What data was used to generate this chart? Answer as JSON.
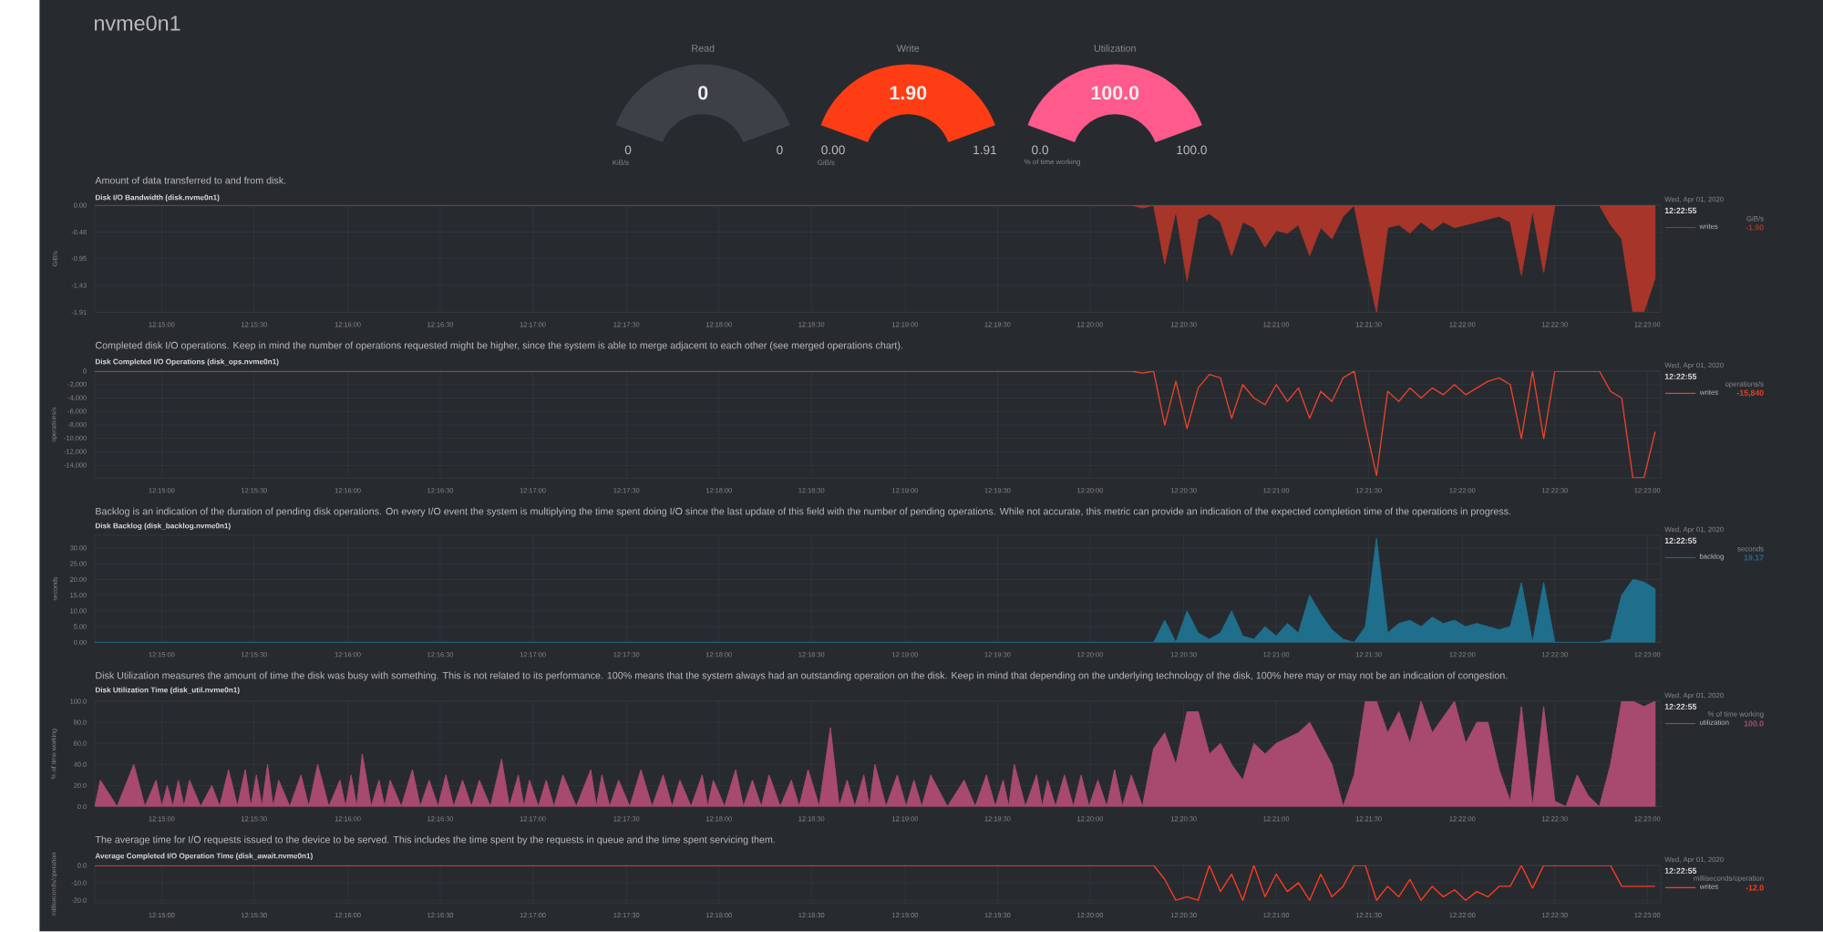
{
  "chart_data": [
    {
      "type": "other",
      "title": "nvme0n1"
    },
    {
      "type": "other",
      "title": "Read",
      "colors": [
        "#3d4046"
      ],
      "annotations": [
        "0",
        "0",
        "0",
        "KiB/s"
      ]
    },
    {
      "type": "other",
      "title": "Write",
      "colors": [
        "#ff3d14"
      ],
      "annotations": [
        "1.90",
        "0.00",
        "1.91",
        "GiB/s"
      ]
    },
    {
      "type": "other",
      "title": "Utilization",
      "colors": [
        "#ff5a8c"
      ],
      "annotations": [
        "100.0",
        "0.0",
        "100.0",
        "% of time working"
      ]
    },
    {
      "type": "area",
      "subtitle": "Amount of data transferred to and from disk.",
      "title": "Disk I/O Bandwidth (disk.nvme0n1)",
      "ylabel": "GiB/s",
      "grid": true,
      "legend": "right",
      "annotations": [
        "Wed, Apr 01, 2020",
        "12:22:55",
        "GiB/s",
        "-1.90"
      ],
      "xlim": [
        12.244,
        12.3845
      ],
      "ylim": [
        -1.91,
        0
      ],
      "xticks": [
        {
          "value": 12.25,
          "label": "12:15:00"
        },
        {
          "value": 12.2583,
          "label": "12:15:30"
        },
        {
          "value": 12.2667,
          "label": "12:16:00"
        },
        {
          "value": 12.275,
          "label": "12:16:30"
        },
        {
          "value": 12.2833,
          "label": "12:17:00"
        },
        {
          "value": 12.2917,
          "label": "12:17:30"
        },
        {
          "value": 12.3,
          "label": "12:18:00"
        },
        {
          "value": 12.3083,
          "label": "12:18:30"
        },
        {
          "value": 12.3167,
          "label": "12:19:00"
        },
        {
          "value": 12.325,
          "label": "12:19:30"
        },
        {
          "value": 12.3333,
          "label": "12:20:00"
        },
        {
          "value": 12.3417,
          "label": "12:20:30"
        },
        {
          "value": 12.35,
          "label": "12:21:00"
        },
        {
          "value": 12.3583,
          "label": "12:21:30"
        },
        {
          "value": 12.3667,
          "label": "12:22:00"
        },
        {
          "value": 12.375,
          "label": "12:22:30"
        },
        {
          "value": 12.3833,
          "label": "12:23:00"
        }
      ],
      "yticks": [
        {
          "value": 0,
          "label": "0.00"
        },
        -0.48,
        -0.95,
        -1.43,
        -1.91
      ],
      "x": [
        12.244,
        12.337,
        12.338,
        12.339,
        12.34,
        12.341,
        12.342,
        12.343,
        12.344,
        12.345,
        12.346,
        12.347,
        12.348,
        12.349,
        12.35,
        12.351,
        12.352,
        12.353,
        12.354,
        12.355,
        12.356,
        12.357,
        12.358,
        12.359,
        12.36,
        12.361,
        12.362,
        12.363,
        12.364,
        12.365,
        12.366,
        12.367,
        12.368,
        12.369,
        12.37,
        12.371,
        12.372,
        12.373,
        12.374,
        12.375,
        12.376,
        12.377,
        12.378,
        12.379,
        12.38,
        12.381,
        12.382,
        12.383,
        12.384
      ],
      "series": [
        {
          "name": "writes",
          "color": "#a8352a",
          "values": [
            0,
            0,
            -0.05,
            0,
            -1.05,
            -0.1,
            -1.35,
            -0.25,
            -0.15,
            -0.3,
            -0.9,
            -0.3,
            -0.4,
            -0.75,
            -0.45,
            -0.5,
            -0.35,
            -0.9,
            -0.4,
            -0.6,
            -0.2,
            0,
            -1.0,
            -1.91,
            -0.4,
            -0.35,
            -0.5,
            -0.3,
            -0.45,
            -0.3,
            -0.4,
            -0.35,
            -0.3,
            -0.25,
            -0.2,
            -0.3,
            -1.25,
            -0.1,
            -1.2,
            0,
            0,
            0,
            0,
            0,
            -0.35,
            -0.6,
            -1.9,
            -1.9,
            -1.3
          ]
        }
      ]
    },
    {
      "type": "line",
      "subtitle": "Completed disk I/O operations. Keep in mind the number of operations requested might be higher, since the system is able to merge adjacent to each other (see merged operations chart).",
      "title": "Disk Completed I/O Operations (disk_ops.nvme0n1)",
      "ylabel": "operations/s",
      "grid": true,
      "legend": "right",
      "annotations": [
        "Wed, Apr 01, 2020",
        "12:22:55",
        "operations/s",
        "-15,840"
      ],
      "xlim": [
        12.244,
        12.3845
      ],
      "ylim": [
        -15900,
        0
      ],
      "xticks": [
        {
          "value": 12.25,
          "label": "12:15:00"
        },
        {
          "value": 12.2583,
          "label": "12:15:30"
        },
        {
          "value": 12.2667,
          "label": "12:16:00"
        },
        {
          "value": 12.275,
          "label": "12:16:30"
        },
        {
          "value": 12.2833,
          "label": "12:17:00"
        },
        {
          "value": 12.2917,
          "label": "12:17:30"
        },
        {
          "value": 12.3,
          "label": "12:18:00"
        },
        {
          "value": 12.3083,
          "label": "12:18:30"
        },
        {
          "value": 12.3167,
          "label": "12:19:00"
        },
        {
          "value": 12.325,
          "label": "12:19:30"
        },
        {
          "value": 12.3333,
          "label": "12:20:00"
        },
        {
          "value": 12.3417,
          "label": "12:20:30"
        },
        {
          "value": 12.35,
          "label": "12:21:00"
        },
        {
          "value": 12.3583,
          "label": "12:21:30"
        },
        {
          "value": 12.3667,
          "label": "12:22:00"
        },
        {
          "value": 12.375,
          "label": "12:22:30"
        },
        {
          "value": 12.3833,
          "label": "12:23:00"
        }
      ],
      "yticks": [
        0,
        {
          "value": -2000,
          "label": "-2,000"
        },
        {
          "value": -4000,
          "label": "-4,000"
        },
        {
          "value": -6000,
          "label": "-6,000"
        },
        {
          "value": -8000,
          "label": "-8,000"
        },
        {
          "value": -10000,
          "label": "-10,000"
        },
        {
          "value": -12000,
          "label": "-12,000"
        },
        {
          "value": -14000,
          "label": "-14,000"
        }
      ],
      "x": [
        12.244,
        12.337,
        12.338,
        12.339,
        12.34,
        12.341,
        12.342,
        12.343,
        12.344,
        12.345,
        12.346,
        12.347,
        12.348,
        12.349,
        12.35,
        12.351,
        12.352,
        12.353,
        12.354,
        12.355,
        12.356,
        12.357,
        12.358,
        12.359,
        12.36,
        12.361,
        12.362,
        12.363,
        12.364,
        12.365,
        12.366,
        12.367,
        12.368,
        12.369,
        12.37,
        12.371,
        12.372,
        12.373,
        12.374,
        12.375,
        12.376,
        12.377,
        12.378,
        12.379,
        12.38,
        12.381,
        12.382,
        12.383,
        12.384
      ],
      "series": [
        {
          "name": "writes",
          "color": "#e8422a",
          "values": [
            0,
            0,
            -300,
            0,
            -8000,
            -1500,
            -8500,
            -2500,
            -500,
            -1000,
            -7000,
            -2000,
            -4000,
            -5000,
            -2000,
            -4500,
            -2500,
            -7000,
            -3000,
            -4500,
            -1000,
            0,
            -8000,
            -15500,
            -3000,
            -4500,
            -2500,
            -4000,
            -2500,
            -3500,
            -2000,
            -3500,
            -2500,
            -1500,
            -1000,
            -2000,
            -10000,
            0,
            -10000,
            0,
            0,
            0,
            0,
            0,
            -3000,
            -4000,
            -15840,
            -15840,
            -9000
          ]
        }
      ]
    },
    {
      "type": "area",
      "subtitle": "Backlog is an indication of the duration of pending disk operations. On every I/O event the system is multiplying the time spent doing I/O since the last update of this field with the number of pending operations. While not accurate, this metric can provide an indication of the expected completion time of the operations in progress.",
      "title": "Disk Backlog (disk_backlog.nvme0n1)",
      "ylabel": "seconds",
      "grid": true,
      "legend": "right",
      "annotations": [
        "Wed, Apr 01, 2020",
        "12:22:55",
        "seconds",
        "19.17"
      ],
      "xlim": [
        12.244,
        12.3845
      ],
      "ylim": [
        0,
        34
      ],
      "xticks": [
        {
          "value": 12.25,
          "label": "12:15:00"
        },
        {
          "value": 12.2583,
          "label": "12:15:30"
        },
        {
          "value": 12.2667,
          "label": "12:16:00"
        },
        {
          "value": 12.275,
          "label": "12:16:30"
        },
        {
          "value": 12.2833,
          "label": "12:17:00"
        },
        {
          "value": 12.2917,
          "label": "12:17:30"
        },
        {
          "value": 12.3,
          "label": "12:18:00"
        },
        {
          "value": 12.3083,
          "label": "12:18:30"
        },
        {
          "value": 12.3167,
          "label": "12:19:00"
        },
        {
          "value": 12.325,
          "label": "12:19:30"
        },
        {
          "value": 12.3333,
          "label": "12:20:00"
        },
        {
          "value": 12.3417,
          "label": "12:20:30"
        },
        {
          "value": 12.35,
          "label": "12:21:00"
        },
        {
          "value": 12.3583,
          "label": "12:21:30"
        },
        {
          "value": 12.3667,
          "label": "12:22:00"
        },
        {
          "value": 12.375,
          "label": "12:22:30"
        },
        {
          "value": 12.3833,
          "label": "12:23:00"
        }
      ],
      "yticks": [
        {
          "value": 0,
          "label": "0.00"
        },
        {
          "value": 5,
          "label": "5.00"
        },
        {
          "value": 10,
          "label": "10.00"
        },
        {
          "value": 15,
          "label": "15.00"
        },
        {
          "value": 20,
          "label": "20.00"
        },
        {
          "value": 25,
          "label": "25.00"
        },
        {
          "value": 30,
          "label": "30.00"
        }
      ],
      "x": [
        12.244,
        12.337,
        12.338,
        12.339,
        12.34,
        12.341,
        12.342,
        12.343,
        12.344,
        12.345,
        12.346,
        12.347,
        12.348,
        12.349,
        12.35,
        12.351,
        12.352,
        12.353,
        12.354,
        12.355,
        12.356,
        12.357,
        12.358,
        12.359,
        12.36,
        12.361,
        12.362,
        12.363,
        12.364,
        12.365,
        12.366,
        12.367,
        12.368,
        12.369,
        12.37,
        12.371,
        12.372,
        12.373,
        12.374,
        12.375,
        12.376,
        12.377,
        12.378,
        12.379,
        12.38,
        12.381,
        12.382,
        12.383,
        12.384
      ],
      "series": [
        {
          "name": "backlog",
          "color": "#1f6f8c",
          "values": [
            0,
            0,
            0,
            0,
            7,
            0,
            10,
            3,
            1,
            3,
            10,
            2,
            1,
            5,
            2,
            6,
            3,
            15,
            9,
            4,
            1,
            0,
            5,
            33,
            3,
            6,
            7,
            5,
            8,
            6,
            7,
            5,
            6,
            5,
            4,
            5,
            19,
            0,
            19,
            0,
            0,
            0,
            0,
            0,
            1,
            15,
            20,
            19.17,
            17
          ]
        }
      ]
    },
    {
      "type": "area",
      "subtitle": "Disk Utilization measures the amount of time the disk was busy with something. This is not related to its performance. 100% means that the system always had an outstanding operation on the disk. Keep in mind that depending on the underlying technology of the disk, 100% here may or may not be an indication of congestion.",
      "title": "Disk Utilization Time (disk_util.nvme0n1)",
      "ylabel": "% of time working",
      "grid": true,
      "legend": "right",
      "annotations": [
        "Wed, Apr 01, 2020",
        "12:22:55",
        "% of time working",
        "100.0"
      ],
      "xlim": [
        12.244,
        12.3845
      ],
      "ylim": [
        0,
        100
      ],
      "xticks": [
        {
          "value": 12.25,
          "label": "12:15:00"
        },
        {
          "value": 12.2583,
          "label": "12:15:30"
        },
        {
          "value": 12.2667,
          "label": "12:16:00"
        },
        {
          "value": 12.275,
          "label": "12:16:30"
        },
        {
          "value": 12.2833,
          "label": "12:17:00"
        },
        {
          "value": 12.2917,
          "label": "12:17:30"
        },
        {
          "value": 12.3,
          "label": "12:18:00"
        },
        {
          "value": 12.3083,
          "label": "12:18:30"
        },
        {
          "value": 12.3167,
          "label": "12:19:00"
        },
        {
          "value": 12.325,
          "label": "12:19:30"
        },
        {
          "value": 12.3333,
          "label": "12:20:00"
        },
        {
          "value": 12.3417,
          "label": "12:20:30"
        },
        {
          "value": 12.35,
          "label": "12:21:00"
        },
        {
          "value": 12.3583,
          "label": "12:21:30"
        },
        {
          "value": 12.3667,
          "label": "12:22:00"
        },
        {
          "value": 12.375,
          "label": "12:22:30"
        },
        {
          "value": 12.3833,
          "label": "12:23:00"
        }
      ],
      "yticks": [
        {
          "value": 0,
          "label": "0.0"
        },
        {
          "value": 20,
          "label": "20.0"
        },
        {
          "value": 40,
          "label": "40.0"
        },
        {
          "value": 60,
          "label": "60.0"
        },
        {
          "value": 80,
          "label": "80.0"
        },
        {
          "value": 100,
          "label": "100.0"
        }
      ],
      "x": [
        12.244,
        12.2445,
        12.246,
        12.2475,
        12.2485,
        12.2495,
        12.25,
        12.2505,
        12.251,
        12.2515,
        12.252,
        12.2525,
        12.2535,
        12.2545,
        12.2552,
        12.256,
        12.2568,
        12.2575,
        12.258,
        12.2585,
        12.259,
        12.2595,
        12.26,
        12.2605,
        12.2615,
        12.2625,
        12.2632,
        12.264,
        12.265,
        12.266,
        12.2665,
        12.267,
        12.2675,
        12.268,
        12.2688,
        12.2695,
        12.27,
        12.2705,
        12.2715,
        12.2725,
        12.2732,
        12.274,
        12.2748,
        12.2755,
        12.2762,
        12.277,
        12.2778,
        12.2785,
        12.2795,
        12.2805,
        12.2812,
        12.282,
        12.2825,
        12.283,
        12.2838,
        12.2845,
        12.2852,
        12.286,
        12.2872,
        12.2885,
        12.289,
        12.2895,
        12.2902,
        12.291,
        12.292,
        12.293,
        12.294,
        12.295,
        12.2958,
        12.2965,
        12.2975,
        12.2985,
        12.299,
        12.2995,
        12.3005,
        12.3015,
        12.3022,
        12.303,
        12.3038,
        12.3045,
        12.3055,
        12.3065,
        12.3072,
        12.308,
        12.309,
        12.31,
        12.3108,
        12.3115,
        12.3122,
        12.313,
        12.3135,
        12.314,
        12.315,
        12.316,
        12.3168,
        12.3175,
        12.3182,
        12.319,
        12.3205,
        12.322,
        12.323,
        12.324,
        12.3248,
        12.3255,
        12.326,
        12.3265,
        12.3275,
        12.3285,
        12.329,
        12.3295,
        12.3302,
        12.331,
        12.3318,
        12.3325,
        12.3332,
        12.334,
        12.3348,
        12.3355,
        12.3362,
        12.337,
        12.338,
        12.339,
        12.34,
        12.341,
        12.342,
        12.343,
        12.344,
        12.345,
        12.346,
        12.347,
        12.348,
        12.349,
        12.35,
        12.351,
        12.352,
        12.353,
        12.354,
        12.355,
        12.356,
        12.357,
        12.358,
        12.359,
        12.36,
        12.361,
        12.362,
        12.363,
        12.364,
        12.365,
        12.366,
        12.367,
        12.368,
        12.369,
        12.37,
        12.371,
        12.372,
        12.373,
        12.374,
        12.375,
        12.376,
        12.377,
        12.378,
        12.379,
        12.38,
        12.381,
        12.382,
        12.383,
        12.384
      ],
      "series": [
        {
          "name": "utilization",
          "color": "#a84a70",
          "values": [
            0,
            25,
            0,
            40,
            0,
            25,
            0,
            20,
            0,
            25,
            0,
            25,
            0,
            20,
            0,
            35,
            0,
            35,
            0,
            30,
            0,
            40,
            0,
            25,
            0,
            30,
            0,
            40,
            0,
            25,
            0,
            30,
            0,
            50,
            0,
            25,
            0,
            25,
            0,
            35,
            0,
            25,
            0,
            30,
            0,
            25,
            0,
            25,
            0,
            45,
            0,
            30,
            0,
            25,
            0,
            25,
            0,
            30,
            0,
            35,
            0,
            30,
            0,
            25,
            0,
            35,
            0,
            30,
            0,
            25,
            0,
            30,
            0,
            25,
            0,
            35,
            0,
            25,
            0,
            30,
            0,
            25,
            0,
            35,
            0,
            75,
            0,
            25,
            0,
            30,
            0,
            40,
            0,
            30,
            0,
            25,
            0,
            30,
            0,
            25,
            0,
            30,
            0,
            25,
            0,
            40,
            0,
            30,
            0,
            25,
            0,
            30,
            0,
            30,
            0,
            25,
            0,
            35,
            0,
            30,
            0,
            55,
            70,
            40,
            90,
            90,
            50,
            60,
            40,
            25,
            60,
            50,
            60,
            65,
            70,
            80,
            60,
            40,
            0,
            30,
            100,
            100,
            70,
            90,
            60,
            100,
            70,
            85,
            100,
            60,
            80,
            80,
            35,
            5,
            95,
            0,
            95,
            5,
            0,
            30,
            10,
            0,
            40,
            100,
            100,
            95,
            100
          ]
        }
      ]
    },
    {
      "type": "line",
      "subtitle": "The average time for I/O requests issued to the device to be served. This includes the time spent by the requests in queue and the time spent servicing them.",
      "title": "Average Completed I/O Operation Time (disk_await.nvme0n1)",
      "ylabel": "milliseconds/operation",
      "grid": true,
      "legend": "right",
      "annotations": [
        "Wed, Apr 01, 2020",
        "12:22:55",
        "milliseconds/operation",
        "-12.0"
      ],
      "xlim": [
        12.244,
        12.3845
      ],
      "ylim": [
        -21.5,
        0
      ],
      "xticks": [
        {
          "value": 12.25,
          "label": "12:15:00"
        },
        {
          "value": 12.2583,
          "label": "12:15:30"
        },
        {
          "value": 12.2667,
          "label": "12:16:00"
        },
        {
          "value": 12.275,
          "label": "12:16:30"
        },
        {
          "value": 12.2833,
          "label": "12:17:00"
        },
        {
          "value": 12.2917,
          "label": "12:17:30"
        },
        {
          "value": 12.3,
          "label": "12:18:00"
        },
        {
          "value": 12.3083,
          "label": "12:18:30"
        },
        {
          "value": 12.3167,
          "label": "12:19:00"
        },
        {
          "value": 12.325,
          "label": "12:19:30"
        },
        {
          "value": 12.3333,
          "label": "12:20:00"
        },
        {
          "value": 12.3417,
          "label": "12:20:30"
        },
        {
          "value": 12.35,
          "label": "12:21:00"
        },
        {
          "value": 12.3583,
          "label": "12:21:30"
        },
        {
          "value": 12.3667,
          "label": "12:22:00"
        },
        {
          "value": 12.375,
          "label": "12:22:30"
        },
        {
          "value": 12.3833,
          "label": "12:23:00"
        }
      ],
      "yticks": [
        {
          "value": 0,
          "label": "0.0"
        },
        {
          "value": -10,
          "label": "-10.0"
        },
        {
          "value": -20,
          "label": "-20.0"
        }
      ],
      "x": [
        12.244,
        12.337,
        12.338,
        12.339,
        12.34,
        12.341,
        12.342,
        12.343,
        12.344,
        12.345,
        12.346,
        12.347,
        12.348,
        12.349,
        12.35,
        12.351,
        12.352,
        12.353,
        12.354,
        12.355,
        12.356,
        12.357,
        12.358,
        12.359,
        12.36,
        12.361,
        12.362,
        12.363,
        12.364,
        12.365,
        12.366,
        12.367,
        12.368,
        12.369,
        12.37,
        12.371,
        12.372,
        12.373,
        12.374,
        12.375,
        12.376,
        12.377,
        12.378,
        12.379,
        12.38,
        12.381,
        12.382,
        12.383,
        12.384
      ],
      "series": [
        {
          "name": "writes",
          "color": "#ff3b1f",
          "values": [
            0,
            0,
            0,
            0,
            -8,
            -20,
            -18,
            -20,
            0,
            -15,
            -5,
            -20,
            0,
            -18,
            -5,
            -15,
            -10,
            -20,
            -5,
            -18,
            -12,
            0,
            0,
            -20,
            -12,
            -18,
            -8,
            -20,
            -12,
            -18,
            -14,
            -20,
            -15,
            -18,
            -12,
            -12,
            0,
            -13,
            0,
            0,
            0,
            0,
            0,
            0,
            0,
            -12,
            -12,
            -12,
            -12
          ]
        }
      ]
    }
  ]
}
